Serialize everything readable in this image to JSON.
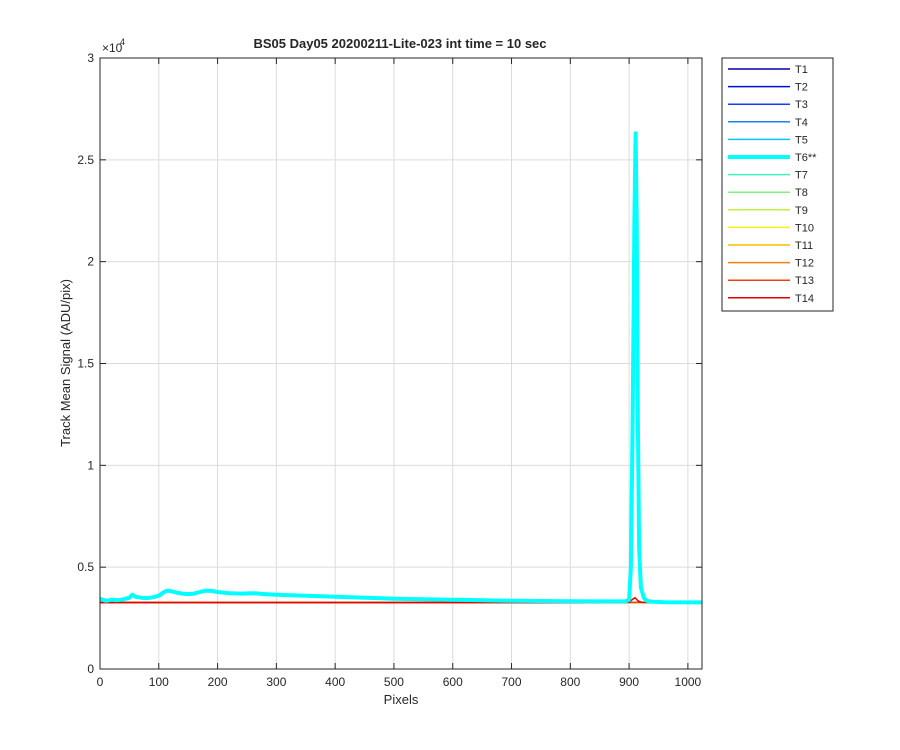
{
  "chart_data": {
    "type": "line",
    "title": "BS05 Day05 20200211-Lite-023 int time = 10 sec",
    "xlabel": "Pixels",
    "ylabel": "Track Mean Signal (ADU/pix)",
    "xlim": [
      0,
      1024
    ],
    "ylim": [
      0,
      30000
    ],
    "y_exponent_label": "×10",
    "y_exponent_power": "4",
    "x_ticks": [
      0,
      100,
      200,
      300,
      400,
      500,
      600,
      700,
      800,
      900,
      1000
    ],
    "x_tick_labels": [
      "0",
      "100",
      "200",
      "300",
      "400",
      "500",
      "600",
      "700",
      "800",
      "900",
      "1000"
    ],
    "y_ticks": [
      0,
      5000,
      10000,
      15000,
      20000,
      25000,
      30000
    ],
    "y_tick_labels": [
      "0",
      "0.5",
      "1",
      "1.5",
      "2",
      "2.5",
      "3"
    ],
    "grid": true,
    "legend_position": "outside-right-top",
    "series": [
      {
        "name": "T1",
        "color": "#0000A8",
        "width": 1.5,
        "x": [
          0,
          1024
        ],
        "y": [
          3250,
          3250
        ]
      },
      {
        "name": "T2",
        "color": "#0010D8",
        "width": 1.5,
        "x": [
          0,
          1024
        ],
        "y": [
          3250,
          3250
        ]
      },
      {
        "name": "T3",
        "color": "#1040F0",
        "width": 1.5,
        "x": [
          0,
          1024
        ],
        "y": [
          3260,
          3260
        ]
      },
      {
        "name": "T4",
        "color": "#2080F0",
        "width": 1.5,
        "x": [
          0,
          1024
        ],
        "y": [
          3260,
          3260
        ]
      },
      {
        "name": "T5",
        "color": "#10C0F8",
        "width": 1.5,
        "x": [
          0,
          1024
        ],
        "y": [
          3260,
          3260
        ]
      },
      {
        "name": "T6**",
        "color": "#00FFFF",
        "width": 4,
        "x": [
          0,
          10,
          20,
          30,
          40,
          50,
          55,
          60,
          70,
          80,
          90,
          100,
          110,
          115,
          120,
          130,
          140,
          150,
          160,
          170,
          180,
          190,
          200,
          220,
          240,
          260,
          280,
          300,
          350,
          400,
          450,
          500,
          550,
          600,
          650,
          700,
          750,
          800,
          850,
          880,
          895,
          900,
          903,
          906,
          909,
          911,
          913,
          915,
          917,
          920,
          925,
          930,
          940,
          960,
          1000,
          1024
        ],
        "y": [
          3450,
          3350,
          3400,
          3380,
          3420,
          3500,
          3650,
          3550,
          3500,
          3480,
          3520,
          3600,
          3800,
          3850,
          3820,
          3750,
          3700,
          3680,
          3700,
          3780,
          3850,
          3830,
          3780,
          3720,
          3700,
          3720,
          3680,
          3650,
          3600,
          3550,
          3500,
          3450,
          3420,
          3400,
          3380,
          3350,
          3340,
          3330,
          3320,
          3320,
          3330,
          3400,
          5000,
          12000,
          22000,
          26300,
          22000,
          12000,
          6000,
          4000,
          3500,
          3350,
          3300,
          3280,
          3270,
          3270
        ]
      },
      {
        "name": "T7",
        "color": "#40F0C0",
        "width": 1.5,
        "x": [
          0,
          1024
        ],
        "y": [
          3270,
          3270
        ]
      },
      {
        "name": "T8",
        "color": "#80F080",
        "width": 1.5,
        "x": [
          0,
          1024
        ],
        "y": [
          3270,
          3270
        ]
      },
      {
        "name": "T9",
        "color": "#C0F040",
        "width": 1.5,
        "x": [
          0,
          1024
        ],
        "y": [
          3270,
          3270
        ]
      },
      {
        "name": "T10",
        "color": "#F8F010",
        "width": 1.5,
        "x": [
          0,
          1024
        ],
        "y": [
          3270,
          3270
        ]
      },
      {
        "name": "T11",
        "color": "#F0C000",
        "width": 1.5,
        "x": [
          0,
          1024
        ],
        "y": [
          3270,
          3270
        ]
      },
      {
        "name": "T12",
        "color": "#F08010",
        "width": 1.5,
        "x": [
          0,
          1024
        ],
        "y": [
          3270,
          3270
        ]
      },
      {
        "name": "T13",
        "color": "#F04010",
        "width": 1.5,
        "x": [
          0,
          1024
        ],
        "y": [
          3270,
          3270
        ]
      },
      {
        "name": "T14",
        "color": "#E00000",
        "width": 1.5,
        "x": [
          0,
          880,
          900,
          905,
          910,
          915,
          920,
          940,
          1024
        ],
        "y": [
          3260,
          3260,
          3280,
          3400,
          3500,
          3350,
          3280,
          3260,
          3260
        ]
      }
    ]
  }
}
